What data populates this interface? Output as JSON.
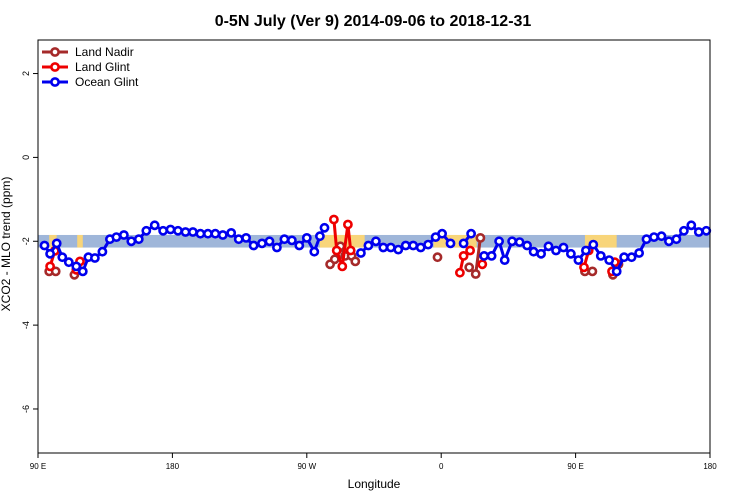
{
  "chart_data": {
    "type": "line",
    "title": "0-5N July (Ver 9)   2014-09-06 to 2018-12-31",
    "xlabel": "Longitude",
    "ylabel": "XCO2 - MLO trend (ppm)",
    "xlim": [
      90,
      450
    ],
    "ylim": [
      -7.05,
      2.8
    ],
    "x_ticks": [
      {
        "value": 90,
        "label": "90 E"
      },
      {
        "value": 162,
        "label": "180"
      },
      {
        "value": 234,
        "label": "90 W"
      },
      {
        "value": 306,
        "label": "0"
      },
      {
        "value": 378,
        "label": "90 E"
      },
      {
        "value": 450,
        "label": "180"
      }
    ],
    "y_ticks": [
      {
        "value": 2,
        "label": "2"
      },
      {
        "value": 0,
        "label": "0"
      },
      {
        "value": -2,
        "label": "-2"
      },
      {
        "value": -4,
        "label": "-4"
      },
      {
        "value": -6,
        "label": "-6"
      }
    ],
    "grid": false,
    "legend_position": "top-left",
    "bands": [
      {
        "color": "#9fb6d9",
        "y_range": [
          -2.15,
          -1.85
        ],
        "x_range": [
          90,
          450
        ]
      },
      {
        "color": "#f8d57a",
        "y_range": [
          -2.15,
          -1.85
        ],
        "x_ranges": [
          [
            96,
            100
          ],
          [
            111,
            114
          ],
          [
            241,
            265
          ],
          [
            302,
            325
          ],
          [
            383,
            400
          ]
        ]
      }
    ],
    "series": [
      {
        "name": "Land Nadir",
        "color": "#a52a2a",
        "segments": [
          [
            [
              96,
              -2.72
            ],
            [
              99.5,
              -2.72
            ]
          ],
          [
            [
              109.5,
              -2.8
            ],
            [
              111,
              -2.65
            ]
          ],
          [
            [
              246.5,
              -2.55
            ],
            [
              249,
              -2.43
            ],
            [
              252,
              -2.12
            ],
            [
              254.5,
              -2.35
            ],
            [
              258,
              -2.35
            ],
            [
              260,
              -2.48
            ]
          ],
          [
            [
              304,
              -2.38
            ]
          ],
          [
            [
              321,
              -2.62
            ],
            [
              324.5,
              -2.78
            ],
            [
              327,
              -1.92
            ]
          ],
          [
            [
              383,
              -2.72
            ],
            [
              387,
              -2.72
            ]
          ],
          [
            [
              398,
              -2.8
            ],
            [
              401,
              -2.55
            ]
          ]
        ]
      },
      {
        "name": "Land Glint",
        "color": "#ee0000",
        "segments": [
          [
            [
              96.5,
              -2.6
            ],
            [
              99,
              -2.23
            ]
          ],
          [
            [
              112.5,
              -2.48
            ],
            [
              110.5,
              -2.68
            ]
          ],
          [
            [
              248.5,
              -1.48
            ],
            [
              250,
              -2.22
            ],
            [
              253,
              -2.6
            ],
            [
              256,
              -1.6
            ],
            [
              257.5,
              -2.22
            ]
          ],
          [
            [
              316,
              -2.75
            ],
            [
              318,
              -2.35
            ],
            [
              321.5,
              -2.22
            ]
          ],
          [
            [
              328,
              -2.55
            ]
          ],
          [
            [
              382.5,
              -2.62
            ],
            [
              385,
              -2.22
            ]
          ],
          [
            [
              397.5,
              -2.72
            ],
            [
              399,
              -2.5
            ]
          ]
        ]
      },
      {
        "name": "Ocean Glint",
        "color": "#0000ee",
        "segments": [
          [
            [
              93.5,
              -2.1
            ],
            [
              96.5,
              -2.3
            ],
            [
              100,
              -2.05
            ],
            [
              103,
              -2.38
            ],
            [
              106.5,
              -2.5
            ],
            [
              110.5,
              -2.6
            ],
            [
              114,
              -2.72
            ],
            [
              117,
              -2.38
            ],
            [
              120.5,
              -2.4
            ],
            [
              124.5,
              -2.25
            ],
            [
              128.5,
              -1.95
            ],
            [
              132,
              -1.9
            ],
            [
              136,
              -1.85
            ],
            [
              140,
              -2.0
            ],
            [
              144,
              -1.95
            ],
            [
              148,
              -1.75
            ],
            [
              152.5,
              -1.62
            ],
            [
              157,
              -1.75
            ],
            [
              161,
              -1.72
            ],
            [
              165,
              -1.75
            ],
            [
              169,
              -1.78
            ],
            [
              173,
              -1.78
            ],
            [
              177,
              -1.82
            ],
            [
              181,
              -1.82
            ],
            [
              185,
              -1.82
            ],
            [
              189,
              -1.85
            ],
            [
              193.5,
              -1.8
            ],
            [
              197.5,
              -1.95
            ],
            [
              201.5,
              -1.92
            ],
            [
              205.5,
              -2.1
            ],
            [
              210,
              -2.05
            ],
            [
              214,
              -2.0
            ],
            [
              218,
              -2.15
            ],
            [
              222,
              -1.95
            ],
            [
              226,
              -1.98
            ],
            [
              230,
              -2.1
            ],
            [
              234,
              -1.92
            ],
            [
              238,
              -2.25
            ],
            [
              241,
              -1.88
            ],
            [
              243.5,
              -1.68
            ]
          ],
          [
            [
              263,
              -2.28
            ],
            [
              267,
              -2.1
            ],
            [
              271,
              -2.0
            ],
            [
              275,
              -2.15
            ],
            [
              279,
              -2.15
            ],
            [
              283,
              -2.2
            ],
            [
              287,
              -2.1
            ],
            [
              291,
              -2.1
            ],
            [
              295,
              -2.15
            ],
            [
              299,
              -2.08
            ],
            [
              303,
              -1.9
            ],
            [
              306.5,
              -1.82
            ],
            [
              311,
              -2.05
            ]
          ],
          [
            [
              318,
              -2.05
            ],
            [
              322,
              -1.82
            ]
          ],
          [
            [
              329,
              -2.35
            ],
            [
              333,
              -2.35
            ],
            [
              337,
              -2.0
            ],
            [
              340,
              -2.45
            ],
            [
              344,
              -2.0
            ],
            [
              348,
              -2.02
            ],
            [
              352,
              -2.1
            ],
            [
              355.5,
              -2.25
            ],
            [
              359.5,
              -2.3
            ],
            [
              363.5,
              -2.12
            ],
            [
              367.5,
              -2.22
            ],
            [
              371.5,
              -2.15
            ],
            [
              375.5,
              -2.3
            ],
            [
              379.5,
              -2.45
            ],
            [
              383.5,
              -2.22
            ],
            [
              387.5,
              -2.08
            ],
            [
              391.5,
              -2.35
            ],
            [
              396,
              -2.45
            ],
            [
              400,
              -2.72
            ],
            [
              404,
              -2.38
            ],
            [
              408,
              -2.38
            ],
            [
              412,
              -2.28
            ],
            [
              416,
              -1.95
            ],
            [
              420,
              -1.9
            ],
            [
              424,
              -1.88
            ],
            [
              428,
              -2.0
            ],
            [
              432,
              -1.95
            ],
            [
              436,
              -1.75
            ],
            [
              440,
              -1.62
            ],
            [
              444,
              -1.78
            ],
            [
              448,
              -1.75
            ]
          ]
        ]
      }
    ]
  }
}
